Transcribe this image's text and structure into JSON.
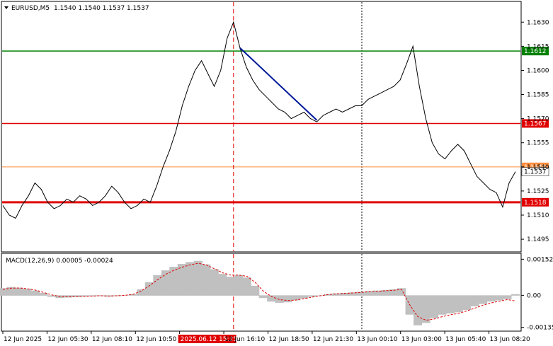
{
  "header": {
    "symbol_text": "EURUSD,M5",
    "ohlc_text": "1.1540 1.1540 1.1537 1.1537"
  },
  "colors": {
    "price_line": "#000000",
    "support_resistance_red": "#e00000",
    "resistance_green": "#008000",
    "trend_blue": "#001a99",
    "current_price_orange": "#ff8c3a",
    "vertical_marker": "#e00000",
    "macd_hist": "#c0c0c0",
    "macd_signal": "#e00000"
  },
  "chart_data": [
    {
      "type": "line",
      "title": "",
      "ylim": [
        1.1488,
        1.1642
      ],
      "y_ticks": [
        "1.1630",
        "1.1615",
        "1.1600",
        "1.1585",
        "1.1570",
        "1.1555",
        "1.1540",
        "1.1525",
        "1.1510",
        "1.1495"
      ],
      "x_labels": [
        "12 Jun 2025",
        "12 Jun 05:30",
        "12 Jun 08:10",
        "12 Jun 10:50",
        "2025.06.12 15:25",
        "12 Jun 16:10",
        "12 Jun 18:50",
        "12 Jun 21:30",
        "13 Jun 00:10",
        "13 Jun 03:00",
        "13 Jun 05:40",
        "13 Jun 08:20"
      ],
      "series": [
        {
          "values": [
            1.1516,
            1.151,
            1.1508,
            1.1516,
            1.1522,
            1.153,
            1.1526,
            1.1518,
            1.1514,
            1.1516,
            1.152,
            1.1518,
            1.1522,
            1.152,
            1.1516,
            1.1518,
            1.1522,
            1.1528,
            1.1524,
            1.1518,
            1.1514,
            1.1516,
            1.152,
            1.1518,
            1.1528,
            1.154,
            1.155,
            1.1562,
            1.1578,
            1.159,
            1.16,
            1.1606,
            1.1598,
            1.159,
            1.16,
            1.162,
            1.163,
            1.1614,
            1.1602,
            1.1594,
            1.1588,
            1.1584,
            1.158,
            1.1576,
            1.1574,
            1.157,
            1.1572,
            1.1574,
            1.157,
            1.1568,
            1.1572,
            1.1574,
            1.1576,
            1.1574,
            1.1576,
            1.1578,
            1.1578,
            1.1582,
            1.1584,
            1.1586,
            1.1588,
            1.159,
            1.1594,
            1.1604,
            1.1615,
            1.159,
            1.157,
            1.1555,
            1.1548,
            1.1545,
            1.155,
            1.1554,
            1.155,
            1.1542,
            1.1534,
            1.153,
            1.1526,
            1.1524,
            1.1515,
            1.153,
            1.1537
          ]
        }
      ],
      "current_price": 1.1537,
      "current_price_label": "1.1537",
      "horizontal_lines": [
        {
          "value": 1.1612,
          "label": "1.1612",
          "color": "#008000"
        },
        {
          "value": 1.1567,
          "label": "1.1567",
          "color": "#e00000"
        },
        {
          "value": 1.154,
          "label": "1.1540",
          "color": "#ff8c3a"
        },
        {
          "value": 1.1518,
          "label": "1.1518",
          "color": "#e00000"
        }
      ],
      "trend_line": {
        "from_index": 37,
        "from_value": 1.1614,
        "to_index": 49,
        "to_value": 1.1569
      },
      "vertical_marker_index": 36
    },
    {
      "type": "bar",
      "title": "MACD(12,26,9) 0.00005 -0.00024",
      "ylim": [
        -0.00145,
        0.00165
      ],
      "y_ticks": [
        "0.00152",
        "0.00",
        "-0.00135"
      ],
      "histogram": [
        0.0003,
        0.00035,
        0.00032,
        0.00028,
        0.0002,
        0.0001,
        -5e-05,
        -0.0001,
        -8e-05,
        -6e-05,
        -4e-05,
        -3e-05,
        -2e-05,
        -4e-05,
        -2e-05,
        0.0,
        5e-05,
        0.00025,
        0.00055,
        0.00085,
        0.00105,
        0.0012,
        0.00132,
        0.0014,
        0.00145,
        0.0013,
        0.0011,
        0.0009,
        0.00078,
        0.00085,
        0.00075,
        0.0004,
        -0.0001,
        -0.00025,
        -0.0003,
        -0.00028,
        -0.0002,
        -0.00012,
        -5e-05,
        0.0,
        5e-05,
        8e-05,
        0.0001,
        0.00012,
        0.00015,
        0.00018,
        0.0002,
        0.00022,
        0.00025,
        0.0003,
        -0.0008,
        -0.00125,
        -0.00115,
        -0.00095,
        -0.0008,
        -0.00075,
        -0.0007,
        -0.0006,
        -0.00045,
        -0.00035,
        -0.00025,
        -0.0002,
        -0.00015,
        5e-05
      ],
      "signal": [
        0.00025,
        0.0003,
        0.00031,
        0.00028,
        0.00022,
        0.00012,
        2e-05,
        -5e-05,
        -6e-05,
        -5e-05,
        -4e-05,
        -3e-05,
        -2e-05,
        -3e-05,
        -2e-05,
        0.0,
        4e-05,
        0.00018,
        0.0004,
        0.00065,
        0.00088,
        0.00105,
        0.00118,
        0.00128,
        0.00135,
        0.00128,
        0.00112,
        0.00095,
        0.00085,
        0.00085,
        0.0008,
        0.00055,
        0.00018,
        -5e-05,
        -0.00018,
        -0.00022,
        -0.0002,
        -0.00014,
        -8e-05,
        -2e-05,
        3e-05,
        6e-05,
        8e-05,
        0.0001,
        0.00012,
        0.00015,
        0.00017,
        0.00019,
        0.00021,
        0.00025,
        -0.0004,
        -0.0009,
        -0.00105,
        -0.001,
        -0.0009,
        -0.00082,
        -0.00076,
        -0.00066,
        -0.00054,
        -0.00042,
        -0.00032,
        -0.00025,
        -0.00018,
        -0.00024
      ]
    }
  ]
}
